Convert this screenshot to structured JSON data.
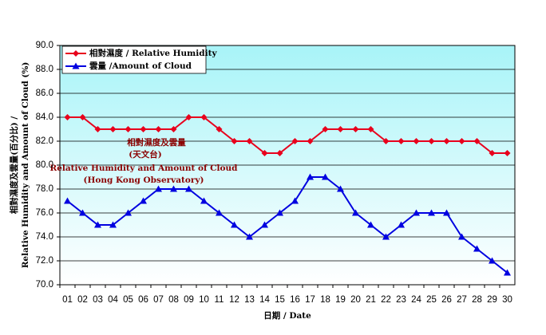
{
  "chart_data": {
    "type": "line",
    "categories": [
      "01",
      "02",
      "03",
      "04",
      "05",
      "06",
      "07",
      "08",
      "09",
      "10",
      "11",
      "12",
      "13",
      "14",
      "15",
      "16",
      "17",
      "18",
      "19",
      "20",
      "21",
      "22",
      "23",
      "24",
      "25",
      "26",
      "27",
      "28",
      "29",
      "30"
    ],
    "series": [
      {
        "name": "相對濕度 / Relative Humidity",
        "color": "#e8001c",
        "marker": "diamond",
        "values": [
          84,
          84,
          83,
          83,
          83,
          83,
          83,
          83,
          84,
          84,
          83,
          82,
          82,
          81,
          81,
          82,
          82,
          83,
          83,
          83,
          83,
          82,
          82,
          82,
          82,
          82,
          82,
          82,
          81,
          81
        ]
      },
      {
        "name": "雲量 /Amount of Cloud",
        "color": "#0000e0",
        "marker": "triangle",
        "values": [
          77,
          76,
          75,
          75,
          76,
          77,
          78,
          78,
          78,
          77,
          76,
          75,
          74,
          75,
          76,
          77,
          79,
          79,
          78,
          76,
          75,
          74,
          75,
          76,
          76,
          76,
          74,
          73,
          72,
          71
        ]
      }
    ],
    "ylim": [
      70,
      90
    ],
    "yticks": [
      {
        "value": 70,
        "label": "70.0"
      },
      {
        "value": 72,
        "label": "72.0"
      },
      {
        "value": 74,
        "label": "74.0"
      },
      {
        "value": 76,
        "label": "76.0"
      },
      {
        "value": 78,
        "label": "78.0"
      },
      {
        "value": 80,
        "label": "80.0"
      },
      {
        "value": 82,
        "label": "82.0"
      },
      {
        "value": 84,
        "label": "84.0"
      },
      {
        "value": 86,
        "label": "86.0"
      },
      {
        "value": 88,
        "label": "88.0"
      },
      {
        "value": 90,
        "label": "90.0"
      }
    ],
    "ylabel": [
      "相對濕度及雲量(百分比) /",
      "Relative Humidity and Amount of Cloud (%)"
    ],
    "xlabel": "日期 / Date",
    "annotations": [
      "相對濕度及雲量",
      "(天文台)",
      "Relative Humidity and Amount of Cloud",
      "(Hong Kong Observatory)"
    ],
    "grid": true,
    "legend": "upper left"
  }
}
